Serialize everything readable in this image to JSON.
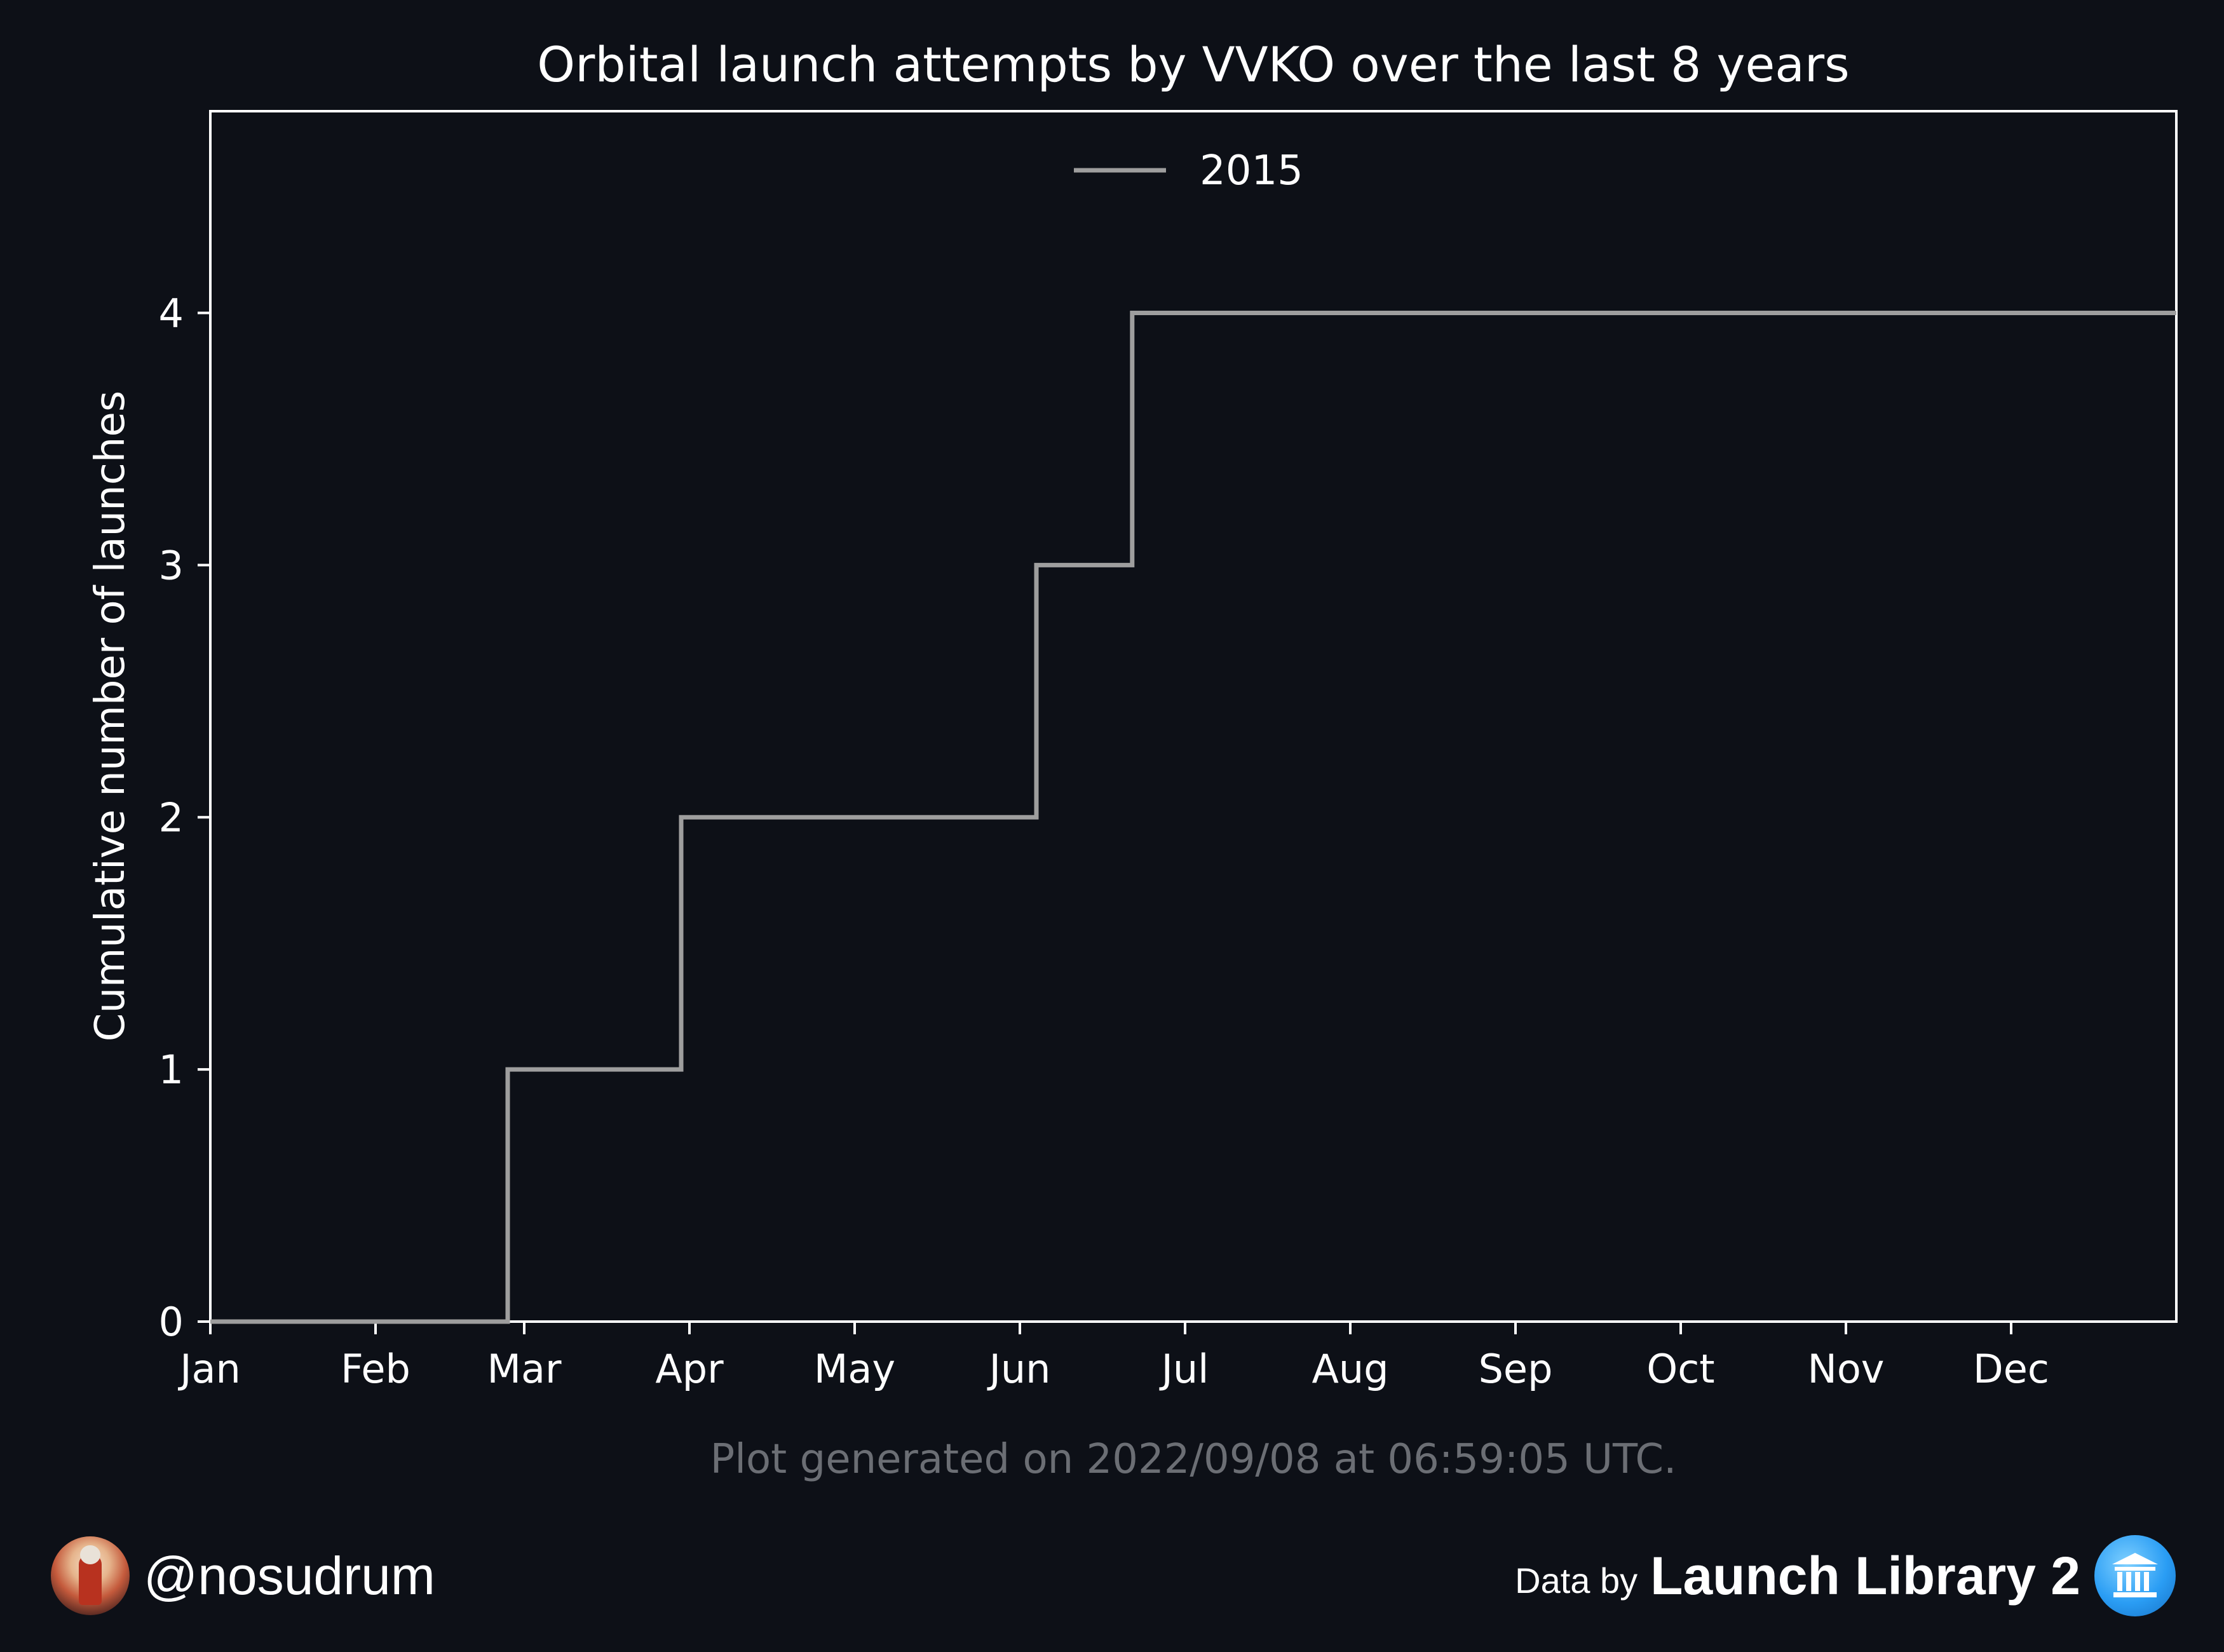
{
  "chart_data": {
    "type": "line",
    "step": "post",
    "title": "Orbital launch attempts by VVKO over the last 8 years",
    "xlabel": "",
    "ylabel": "Cumulative number of launches",
    "x_tick_labels": [
      "Jan",
      "Feb",
      "Mar",
      "Apr",
      "May",
      "Jun",
      "Jul",
      "Aug",
      "Sep",
      "Oct",
      "Nov",
      "Dec"
    ],
    "x_tick_positions_month": [
      0,
      1,
      1.9,
      2.9,
      3.9,
      4.9,
      5.9,
      6.9,
      7.9,
      8.9,
      9.9,
      10.9
    ],
    "xlim_month": [
      0,
      11.9
    ],
    "y_ticks": [
      0,
      1,
      2,
      3,
      4
    ],
    "ylim": [
      0,
      4.8
    ],
    "grid": false,
    "legend_position": "top-center",
    "series": [
      {
        "name": "2015",
        "color": "#9e9e9e",
        "x_month": [
          0,
          1.8,
          2.85,
          5.0,
          5.58,
          11.9
        ],
        "values": [
          0,
          1,
          2,
          3,
          4,
          4
        ]
      }
    ]
  },
  "caption": "Plot generated on 2022/09/08 at 06:59:05 UTC.",
  "footer": {
    "handle": "@nosudrum",
    "data_by": "Data by",
    "source_name": "Launch Library 2"
  },
  "colors": {
    "background": "#0d1017",
    "axes": "#ffffff",
    "text": "#ffffff",
    "caption": "#6b6e74"
  }
}
